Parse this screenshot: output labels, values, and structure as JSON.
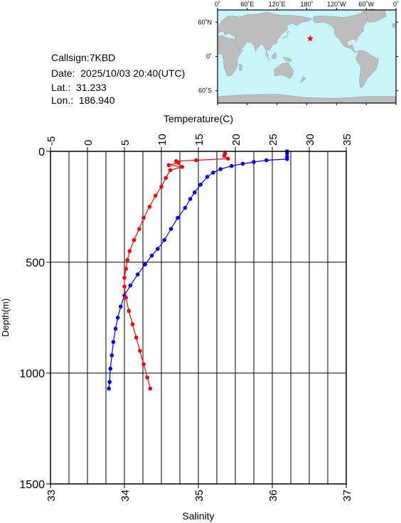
{
  "info": {
    "callsign": "Callsign:7KBD",
    "date": "Date:  2025/10/03 20:40(UTC)",
    "lat": "Lat.:  31.233",
    "lon": "Lon.:  186.940"
  },
  "map": {
    "lon_labels": [
      "0˚",
      "60˚E",
      "120˚E",
      "180˚",
      "120˚W",
      "60˚W",
      "0˚"
    ],
    "lat_labels": [
      "60˚N",
      "0˚",
      "60˚S"
    ],
    "ocean_color": "#c8f5fa",
    "land_color": "#bdbdbd",
    "station": {
      "lon": 186.94,
      "lat": 31.233,
      "marker": "star",
      "color": "#ff0000"
    }
  },
  "chart_data": {
    "type": "line",
    "ylabel": "Depth(m)",
    "y_ticks": [
      "0",
      "500",
      "1000",
      "1500"
    ],
    "ylim": [
      1500,
      0
    ],
    "top_axis": {
      "label": "Temperature(C)",
      "ticks": [
        "-5",
        "0",
        "5",
        "10",
        "15",
        "20",
        "25",
        "30",
        "35"
      ],
      "range": [
        -5,
        35
      ]
    },
    "bottom_axis": {
      "label": "Salinity",
      "ticks": [
        "33",
        "34",
        "35",
        "36",
        "37"
      ],
      "range": [
        33,
        37
      ]
    },
    "grid": true,
    "series": [
      {
        "color": "#0000ff",
        "axis": "top",
        "points": [
          [
            27.0,
            0
          ],
          [
            27.0,
            10
          ],
          [
            27.0,
            25
          ],
          [
            27.0,
            35
          ],
          [
            24.2,
            40
          ],
          [
            22.5,
            48
          ],
          [
            21.0,
            56
          ],
          [
            19.5,
            66
          ],
          [
            18.0,
            80
          ],
          [
            17.0,
            96
          ],
          [
            16.2,
            115
          ],
          [
            15.3,
            150
          ],
          [
            14.5,
            185
          ],
          [
            13.9,
            215
          ],
          [
            13.2,
            255
          ],
          [
            12.2,
            300
          ],
          [
            11.3,
            350
          ],
          [
            10.4,
            400
          ],
          [
            9.5,
            440
          ],
          [
            8.7,
            470
          ],
          [
            7.8,
            510
          ],
          [
            6.8,
            555
          ],
          [
            5.8,
            605
          ],
          [
            5.0,
            650
          ],
          [
            4.5,
            700
          ],
          [
            4.1,
            750
          ],
          [
            3.8,
            800
          ],
          [
            3.5,
            860
          ],
          [
            3.3,
            920
          ],
          [
            3.1,
            980
          ],
          [
            3.0,
            1040
          ],
          [
            2.9,
            1070
          ]
        ]
      },
      {
        "color": "#ff0000",
        "axis": "bottom",
        "points": [
          [
            35.36,
            10
          ],
          [
            35.35,
            20
          ],
          [
            35.4,
            33
          ],
          [
            34.97,
            40
          ],
          [
            34.7,
            44
          ],
          [
            34.73,
            52
          ],
          [
            34.6,
            62
          ],
          [
            34.78,
            70
          ],
          [
            34.62,
            85
          ],
          [
            34.56,
            120
          ],
          [
            34.5,
            160
          ],
          [
            34.42,
            200
          ],
          [
            34.34,
            250
          ],
          [
            34.26,
            300
          ],
          [
            34.2,
            350
          ],
          [
            34.13,
            400
          ],
          [
            34.07,
            450
          ],
          [
            34.04,
            490
          ],
          [
            34.02,
            530
          ],
          [
            34.0,
            570
          ],
          [
            34.0,
            610
          ],
          [
            34.02,
            660
          ],
          [
            34.06,
            720
          ],
          [
            34.11,
            780
          ],
          [
            34.16,
            840
          ],
          [
            34.21,
            900
          ],
          [
            34.26,
            960
          ],
          [
            34.31,
            1020
          ],
          [
            34.35,
            1070
          ]
        ]
      }
    ]
  }
}
